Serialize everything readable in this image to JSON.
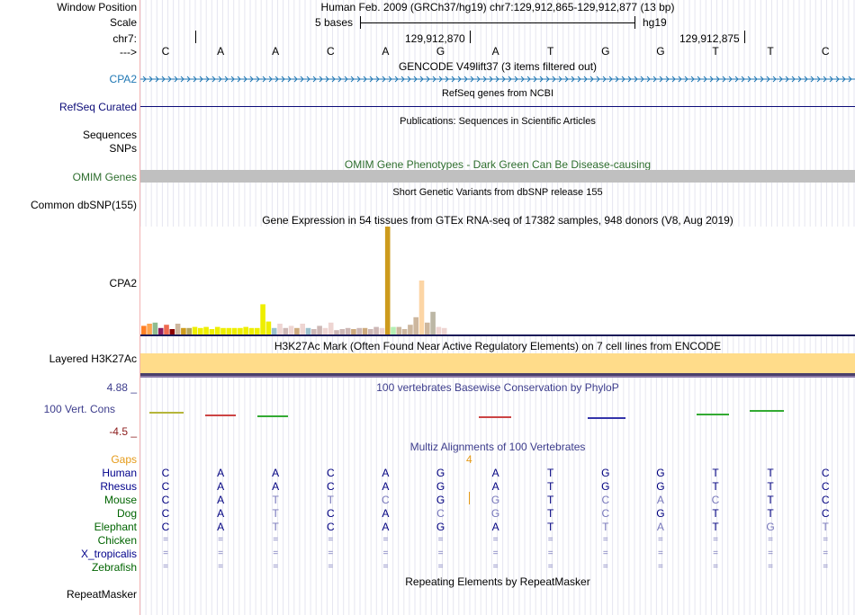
{
  "header": {
    "window_position_label": "Window Position",
    "window_position_value": "Human Feb. 2009 (GRCh37/hg19)   chr7:129,912,865-129,912,877 (13 bp)",
    "scale_label": "Scale",
    "scale_bases": "5 bases",
    "scale_assembly": "hg19",
    "chrom_label": "chr7:",
    "pos_left": "129,912,870",
    "pos_right": "129,912,875",
    "strand_label": "--->"
  },
  "sequence": [
    "C",
    "A",
    "A",
    "C",
    "A",
    "G",
    "A",
    "T",
    "G",
    "G",
    "T",
    "T",
    "C"
  ],
  "tracks": {
    "gencode_title": "GENCODE V49lift37 (3 items filtered out)",
    "gencode_label": "CPA2",
    "refseq_title": "RefSeq genes from NCBI",
    "refseq_label": "RefSeq Curated",
    "publications_title": "Publications: Sequences in Scientific Articles",
    "sequences_label": "Sequences",
    "snps_label": "SNPs",
    "omim_title": "OMIM Gene Phenotypes - Dark Green Can Be Disease-causing",
    "omim_label": "OMIM Genes",
    "dbsnp_title": "Short Genetic Variants from dbSNP release 155",
    "dbsnp_label": "Common dbSNP(155)",
    "gtex_title": "Gene Expression in 54 tissues from GTEx RNA-seq of 17382 samples, 948 donors (V8, Aug 2019)",
    "gtex_label": "CPA2",
    "h3k27_title": "H3K27Ac Mark (Often Found Near Active Regulatory Elements) on 7 cell lines from ENCODE",
    "h3k27_label": "Layered H3K27Ac",
    "phylop_title": "100 vertebrates Basewise Conservation by PhyloP",
    "phylop_label": "100 Vert. Cons",
    "phylop_max": "4.88 _",
    "phylop_min": "-4.5 _",
    "multiz_title": "Multiz Alignments of 100 Vertebrates",
    "gaps_label": "Gaps",
    "gap_count": "4",
    "repeat_title": "Repeating Elements by RepeatMasker",
    "repeat_label": "RepeatMasker"
  },
  "alignment": [
    {
      "species": "Human",
      "bases": [
        "C",
        "A",
        "A",
        "C",
        "A",
        "G",
        "A",
        "T",
        "G",
        "G",
        "T",
        "T",
        "C"
      ],
      "pale": []
    },
    {
      "species": "Rhesus",
      "bases": [
        "C",
        "A",
        "A",
        "C",
        "A",
        "G",
        "A",
        "T",
        "G",
        "G",
        "T",
        "T",
        "C"
      ],
      "pale": []
    },
    {
      "species": "Mouse",
      "bases": [
        "C",
        "A",
        "T",
        "T",
        "C",
        "G",
        "G",
        "T",
        "C",
        "A",
        "C",
        "T",
        "C"
      ],
      "pale": [
        2,
        3,
        4,
        6,
        8,
        9,
        10
      ]
    },
    {
      "species": "Dog",
      "bases": [
        "C",
        "A",
        "T",
        "C",
        "A",
        "C",
        "G",
        "T",
        "C",
        "G",
        "T",
        "T",
        "C"
      ],
      "pale": [
        2,
        5,
        6,
        8
      ]
    },
    {
      "species": "Elephant",
      "bases": [
        "C",
        "A",
        "T",
        "C",
        "A",
        "G",
        "A",
        "T",
        "T",
        "A",
        "T",
        "G",
        "T"
      ],
      "pale": [
        2,
        8,
        9,
        11,
        12
      ]
    },
    {
      "species": "Chicken",
      "bases": [
        "=",
        "=",
        "=",
        "=",
        "=",
        "=",
        "=",
        "=",
        "=",
        "=",
        "=",
        "=",
        "="
      ],
      "pale": [
        0,
        1,
        2,
        3,
        4,
        5,
        6,
        7,
        8,
        9,
        10,
        11,
        12
      ]
    },
    {
      "species": "X_tropicalis",
      "bases": [
        "=",
        "=",
        "=",
        "=",
        "=",
        "=",
        "=",
        "=",
        "=",
        "=",
        "=",
        "=",
        "="
      ],
      "pale": [
        0,
        1,
        2,
        3,
        4,
        5,
        6,
        7,
        8,
        9,
        10,
        11,
        12
      ]
    },
    {
      "species": "Zebrafish",
      "bases": [
        "=",
        "=",
        "=",
        "=",
        "=",
        "=",
        "=",
        "=",
        "=",
        "=",
        "=",
        "=",
        "="
      ],
      "pale": [
        0,
        1,
        2,
        3,
        4,
        5,
        6,
        7,
        8,
        9,
        10,
        11,
        12
      ]
    }
  ],
  "gtex_bars": [
    {
      "v": 0.08,
      "c": "#ff7f24"
    },
    {
      "v": 0.1,
      "c": "#ffa54f"
    },
    {
      "v": 0.11,
      "c": "#8fbc8f"
    },
    {
      "v": 0.06,
      "c": "#8b1c62"
    },
    {
      "v": 0.09,
      "c": "#ee6a50"
    },
    {
      "v": 0.05,
      "c": "#8b0000"
    },
    {
      "v": 0.1,
      "c": "#cdb79e"
    },
    {
      "v": 0.06,
      "c": "#cd9b1d"
    },
    {
      "v": 0.06,
      "c": "#b5a55a"
    },
    {
      "v": 0.07,
      "c": "#eeee00"
    },
    {
      "v": 0.06,
      "c": "#eeee00"
    },
    {
      "v": 0.07,
      "c": "#eeee00"
    },
    {
      "v": 0.05,
      "c": "#eeee00"
    },
    {
      "v": 0.07,
      "c": "#eeee00"
    },
    {
      "v": 0.06,
      "c": "#eeee00"
    },
    {
      "v": 0.06,
      "c": "#eeee00"
    },
    {
      "v": 0.06,
      "c": "#eeee00"
    },
    {
      "v": 0.06,
      "c": "#eeee00"
    },
    {
      "v": 0.07,
      "c": "#eeee00"
    },
    {
      "v": 0.06,
      "c": "#eeee00"
    },
    {
      "v": 0.06,
      "c": "#eeee00"
    },
    {
      "v": 0.28,
      "c": "#eeee00"
    },
    {
      "v": 0.12,
      "c": "#eeee00"
    },
    {
      "v": 0.06,
      "c": "#9ac0cd"
    },
    {
      "v": 0.1,
      "c": "#eed5d2"
    },
    {
      "v": 0.06,
      "c": "#cdb7b5"
    },
    {
      "v": 0.08,
      "c": "#eed5d2"
    },
    {
      "v": 0.06,
      "c": "#cdaa7d"
    },
    {
      "v": 0.1,
      "c": "#eed5d2"
    },
    {
      "v": 0.06,
      "c": "#9ac0cd"
    },
    {
      "v": 0.05,
      "c": "#cdb7b5"
    },
    {
      "v": 0.08,
      "c": "#cdb7b5"
    },
    {
      "v": 0.06,
      "c": "#eed5d2"
    },
    {
      "v": 0.11,
      "c": "#eed5d2"
    },
    {
      "v": 0.04,
      "c": "#cdb7b5"
    },
    {
      "v": 0.05,
      "c": "#cdb7b5"
    },
    {
      "v": 0.06,
      "c": "#cdb7b5"
    },
    {
      "v": 0.05,
      "c": "#cdaa7d"
    },
    {
      "v": 0.06,
      "c": "#cdb7b5"
    },
    {
      "v": 0.06,
      "c": "#cdaa7d"
    },
    {
      "v": 0.05,
      "c": "#cdb7b5"
    },
    {
      "v": 0.07,
      "c": "#cdb7b5"
    },
    {
      "v": 0.06,
      "c": "#eed5d2"
    },
    {
      "v": 1.0,
      "c": "#cd9b1d"
    },
    {
      "v": 0.07,
      "c": "#b4eeb4"
    },
    {
      "v": 0.07,
      "c": "#cdb79e"
    },
    {
      "v": 0.05,
      "c": "#cdb79e"
    },
    {
      "v": 0.09,
      "c": "#cdb79e"
    },
    {
      "v": 0.16,
      "c": "#cdb79e"
    },
    {
      "v": 0.5,
      "c": "#fcd5a5"
    },
    {
      "v": 0.11,
      "c": "#cdb79e"
    },
    {
      "v": 0.21,
      "c": "#bcb7a5"
    },
    {
      "v": 0.07,
      "c": "#eed5d2"
    },
    {
      "v": 0.06,
      "c": "#eed5d2"
    }
  ],
  "colors": {
    "gencode": "#1f77b4",
    "refseq": "#0c0c78",
    "omim": "#2e6e2e",
    "omim_bar": "#c0c0c0",
    "h3k27": "#ffdc8a",
    "phylop": "#3c3c8c",
    "gaps": "#e59a18",
    "species_top": "#00008b",
    "species_green": "#006400"
  }
}
